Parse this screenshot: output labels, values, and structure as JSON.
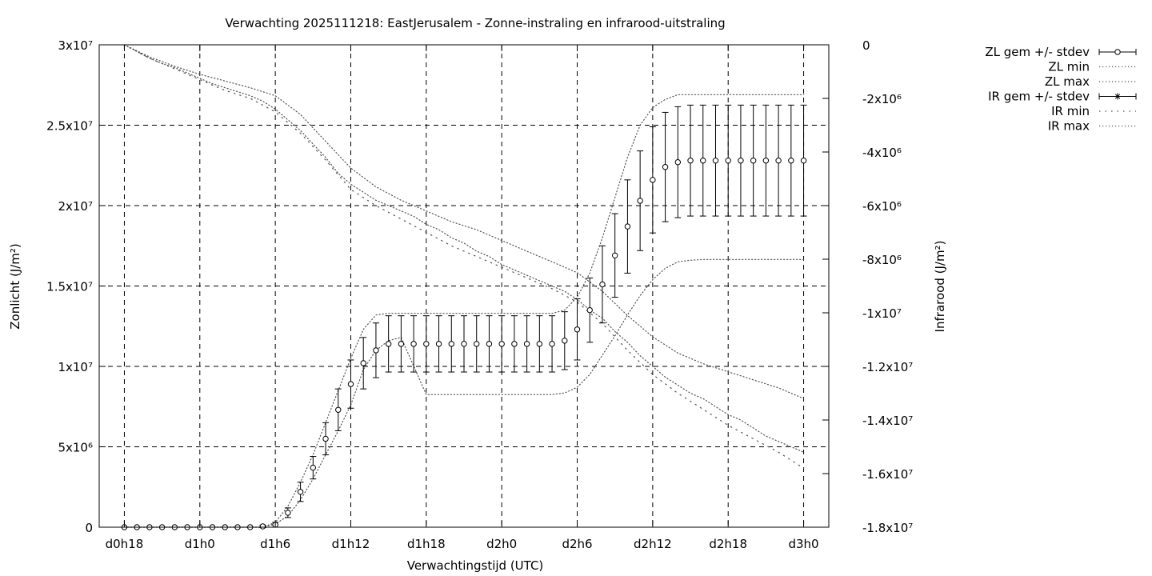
{
  "chart_data": {
    "type": "line",
    "title": "Verwachting 2025111218: EastJerusalem - Zonne-instraling en infrarood-uitstraling",
    "xlabel": "Verwachtingstijd (UTC)",
    "ylabel": "Zonlicht (J/m²)",
    "y2label": "Infrarood (J/m²)",
    "grid": true,
    "legend_position": "right-outside",
    "x_ticks": [
      "d0h18",
      "d1h0",
      "d1h6",
      "d1h12",
      "d1h18",
      "d2h0",
      "d2h6",
      "d2h12",
      "d2h18",
      "d3h0"
    ],
    "x_hours": [
      18,
      24,
      30,
      36,
      42,
      48,
      54,
      60,
      66,
      72
    ],
    "xlim": [
      16,
      74
    ],
    "ylim": [
      0,
      30000000
    ],
    "y_ticks": [
      "0",
      "5x10⁶",
      "1x10⁷",
      "1.5x10⁷",
      "2x10⁷",
      "2.5x10⁷",
      "3x10⁷"
    ],
    "y_tick_values": [
      0,
      5000000,
      10000000,
      15000000,
      20000000,
      25000000,
      30000000
    ],
    "y2lim": [
      -18000000,
      0
    ],
    "y2_ticks": [
      "0",
      "-2x10⁶",
      "-4x10⁶",
      "-6x10⁶",
      "-8x10⁶",
      "-1x10⁷",
      "-1.2x10⁷",
      "-1.4x10⁷",
      "-1.6x10⁷",
      "-1.8x10⁷"
    ],
    "y2_tick_values": [
      0,
      -2000000,
      -4000000,
      -6000000,
      -8000000,
      -10000000,
      -12000000,
      -14000000,
      -16000000,
      -18000000
    ],
    "legend": [
      {
        "label": "ZL gem +/- stdev",
        "style": "errorbar-circle"
      },
      {
        "label": "ZL min",
        "style": "dotted"
      },
      {
        "label": "ZL max",
        "style": "dotted"
      },
      {
        "label": "IR gem +/- stdev",
        "style": "errorbar-star"
      },
      {
        "label": "IR min",
        "style": "dotted-sparse"
      },
      {
        "label": "IR max",
        "style": "dotted"
      }
    ],
    "series": [
      {
        "name": "ZL gem +/- stdev",
        "axis": "y",
        "x": [
          18,
          19,
          20,
          21,
          22,
          23,
          24,
          25,
          26,
          27,
          28,
          29,
          30,
          31,
          32,
          33,
          34,
          35,
          36,
          37,
          38,
          39,
          40,
          41,
          42,
          43,
          44,
          45,
          46,
          47,
          48,
          49,
          50,
          51,
          52,
          53,
          54,
          55,
          56,
          57,
          58,
          59,
          60,
          61,
          62,
          63,
          64,
          65,
          66,
          67,
          68,
          69,
          70,
          71,
          72
        ],
        "y": [
          0,
          0,
          0,
          0,
          0,
          0,
          0,
          0,
          0,
          0,
          0,
          50000,
          150000,
          900000,
          2200000,
          3700000,
          5500000,
          7300000,
          8900000,
          10200000,
          11000000,
          11400000,
          11400000,
          11400000,
          11400000,
          11400000,
          11400000,
          11400000,
          11400000,
          11400000,
          11400000,
          11400000,
          11400000,
          11400000,
          11400000,
          11600000,
          12300000,
          13500000,
          15100000,
          16900000,
          18700000,
          20300000,
          21600000,
          22400000,
          22700000,
          22800000,
          22800000,
          22800000,
          22800000,
          22800000,
          22800000,
          22800000,
          22800000,
          22800000,
          22800000
        ],
        "err": [
          0,
          0,
          0,
          0,
          0,
          0,
          0,
          0,
          0,
          0,
          0,
          80000,
          150000,
          300000,
          600000,
          700000,
          1000000,
          1300000,
          1500000,
          1600000,
          1700000,
          1750000,
          1750000,
          1750000,
          1750000,
          1750000,
          1750000,
          1750000,
          1750000,
          1750000,
          1750000,
          1750000,
          1750000,
          1750000,
          1750000,
          1800000,
          1900000,
          2000000,
          2400000,
          2600000,
          2900000,
          3100000,
          3300000,
          3400000,
          3450000,
          3450000,
          3450000,
          3450000,
          3450000,
          3450000,
          3450000,
          3450000,
          3450000,
          3450000,
          3450000
        ]
      },
      {
        "name": "ZL min",
        "axis": "y",
        "x": [
          18,
          29,
          30,
          31,
          32,
          33,
          34,
          35,
          36,
          37,
          38,
          39,
          40,
          42,
          44,
          46,
          48,
          50,
          52,
          53,
          54,
          55,
          56,
          57,
          58,
          59,
          60,
          61,
          62,
          63,
          64,
          66,
          68,
          70,
          72
        ],
        "y": [
          0,
          0,
          200000,
          700000,
          1700000,
          3000000,
          4500000,
          6000000,
          7600000,
          9800000,
          11000000,
          11600000,
          11800000,
          8250000,
          8250000,
          8250000,
          8250000,
          8250000,
          8250000,
          8350000,
          8700000,
          9500000,
          10700000,
          11900000,
          13200000,
          14400000,
          15400000,
          16100000,
          16500000,
          16600000,
          16650000,
          16650000,
          16650000,
          16650000,
          16650000
        ]
      },
      {
        "name": "ZL max",
        "axis": "y",
        "x": [
          18,
          29,
          30,
          31,
          32,
          33,
          34,
          35,
          36,
          37,
          38,
          39,
          40,
          42,
          44,
          46,
          48,
          50,
          52,
          53,
          54,
          55,
          56,
          57,
          58,
          59,
          60,
          61,
          62,
          63,
          64,
          66,
          68,
          70,
          72
        ],
        "y": [
          0,
          0,
          300000,
          1300000,
          2800000,
          4500000,
          6500000,
          8500000,
          10500000,
          12300000,
          13200000,
          13300000,
          13300000,
          13300000,
          13300000,
          13300000,
          13300000,
          13300000,
          13300000,
          13500000,
          14300000,
          15800000,
          18000000,
          20500000,
          23000000,
          25000000,
          26100000,
          26600000,
          26900000,
          26900000,
          26900000,
          26900000,
          26900000,
          26900000,
          26900000
        ]
      },
      {
        "name": "IR gem +/- stdev",
        "axis": "y2",
        "x": [
          18,
          19,
          20,
          21,
          22,
          23,
          24,
          25,
          26,
          27,
          28,
          29,
          30,
          31,
          32,
          33,
          34,
          35,
          36,
          37,
          38,
          39,
          40,
          41,
          42,
          43,
          44,
          45,
          46,
          47,
          48,
          49,
          50,
          51,
          52,
          53,
          54,
          55,
          56,
          57,
          58,
          59,
          60,
          61,
          62,
          63,
          64,
          65,
          66,
          67,
          68,
          69,
          70,
          71,
          72
        ],
        "y": [
          0,
          -250000,
          -500000,
          -700000,
          -850000,
          -1050000,
          -1250000,
          -1450000,
          -1600000,
          -1750000,
          -1900000,
          -2100000,
          -2400000,
          -2800000,
          -3200000,
          -3700000,
          -4200000,
          -4800000,
          -5200000,
          -5500000,
          -5800000,
          -6000000,
          -6200000,
          -6400000,
          -6700000,
          -6900000,
          -7200000,
          -7400000,
          -7700000,
          -7900000,
          -8200000,
          -8400000,
          -8600000,
          -8800000,
          -9000000,
          -9200000,
          -9500000,
          -9900000,
          -10200000,
          -10700000,
          -11100000,
          -11600000,
          -12000000,
          -12400000,
          -12700000,
          -13000000,
          -13200000,
          -13500000,
          -13800000,
          -14000000,
          -14300000,
          -14600000,
          -14800000,
          -15000000,
          -15200000
        ]
      },
      {
        "name": "IR min",
        "axis": "y2",
        "x": [
          18,
          20,
          22,
          24,
          26,
          28,
          30,
          32,
          34,
          36,
          38,
          40,
          42,
          44,
          46,
          48,
          50,
          52,
          54,
          56,
          58,
          60,
          62,
          64,
          66,
          68,
          70,
          72
        ],
        "y": [
          0,
          -500000,
          -900000,
          -1300000,
          -1700000,
          -2000000,
          -2500000,
          -3300000,
          -4300000,
          -5400000,
          -6000000,
          -6500000,
          -7000000,
          -7500000,
          -7900000,
          -8300000,
          -8700000,
          -9100000,
          -9600000,
          -10400000,
          -11400000,
          -12300000,
          -13000000,
          -13600000,
          -14200000,
          -14700000,
          -15200000,
          -15800000
        ]
      },
      {
        "name": "IR max",
        "axis": "y2",
        "x": [
          18,
          20,
          22,
          24,
          26,
          28,
          30,
          32,
          34,
          36,
          38,
          40,
          42,
          44,
          46,
          48,
          50,
          52,
          54,
          56,
          58,
          60,
          62,
          64,
          66,
          68,
          70,
          72
        ],
        "y": [
          0,
          -450000,
          -800000,
          -1100000,
          -1350000,
          -1600000,
          -1900000,
          -2600000,
          -3600000,
          -4600000,
          -5300000,
          -5800000,
          -6200000,
          -6600000,
          -6900000,
          -7300000,
          -7700000,
          -8100000,
          -8500000,
          -9200000,
          -10100000,
          -10900000,
          -11500000,
          -11900000,
          -12200000,
          -12500000,
          -12800000,
          -13200000
        ]
      }
    ]
  }
}
